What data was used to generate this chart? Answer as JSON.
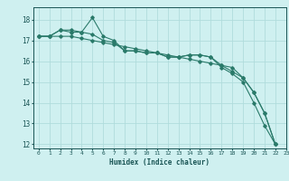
{
  "xlabel": "Humidex (Indice chaleur)",
  "xlim": [
    -0.5,
    23
  ],
  "ylim": [
    11.8,
    18.6
  ],
  "yticks": [
    12,
    13,
    14,
    15,
    16,
    17,
    18
  ],
  "xticks": [
    0,
    1,
    2,
    3,
    4,
    5,
    6,
    7,
    8,
    9,
    10,
    11,
    12,
    13,
    14,
    15,
    16,
    17,
    18,
    19,
    20,
    21,
    22,
    23
  ],
  "background_color": "#cff0f0",
  "grid_color": "#b0dcdc",
  "line_color": "#2a7a6a",
  "lines": [
    [
      17.2,
      17.2,
      17.5,
      17.5,
      17.4,
      18.1,
      17.2,
      17.0,
      16.5,
      16.5,
      16.4,
      16.4,
      16.2,
      16.2,
      16.3,
      16.3,
      16.2,
      15.7,
      15.4,
      15.0,
      14.0,
      12.9,
      12.0
    ],
    [
      17.2,
      17.2,
      17.2,
      17.2,
      17.1,
      17.0,
      16.9,
      16.8,
      16.7,
      16.6,
      16.5,
      16.4,
      16.3,
      16.2,
      16.1,
      16.0,
      15.9,
      15.8,
      15.7,
      15.2,
      14.5,
      13.5,
      12.0
    ],
    [
      17.2,
      17.2,
      17.5,
      17.4,
      17.4,
      17.3,
      17.0,
      16.9,
      16.5,
      16.5,
      16.4,
      16.4,
      16.2,
      16.2,
      16.3,
      16.3,
      16.2,
      15.8,
      15.5,
      15.2,
      14.5,
      13.5,
      12.0
    ]
  ]
}
